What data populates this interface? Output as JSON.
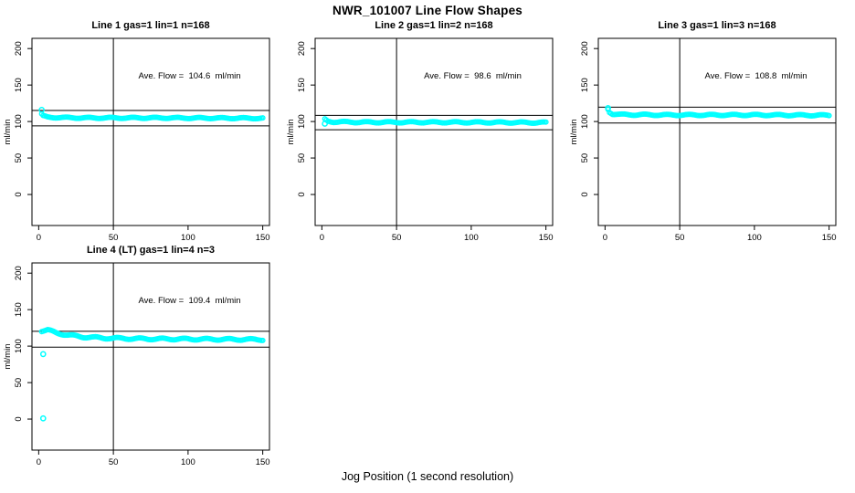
{
  "chart_data": {
    "type": "scatter",
    "title": "NWR_101007  Line Flow Shapes",
    "xlabel": "Jog Position (1 second resolution)",
    "ylabel": "ml/min",
    "x_ticks": [
      0,
      50,
      100,
      150
    ],
    "y_ticks": [
      0,
      50,
      100,
      150,
      200
    ],
    "xlim": [
      -4.5,
      154.5
    ],
    "ylim": [
      -42.5,
      214
    ],
    "grid": false,
    "legend": "none",
    "background_color": "#FFFFFF",
    "axis_color": "#000000",
    "point_color": "#00FFFF",
    "marker": "open-circle",
    "vline_x": 50,
    "panels": [
      {
        "title": "Line 1 gas=1 lin=1 n=168",
        "annotation": "Ave. Flow =  104.6  ml/min",
        "ave_flow_ml_min": 104.6,
        "hlines": [
          115.1,
          94.1
        ],
        "band": {
          "x_start": 2,
          "x_end": 150,
          "spread": 0.8,
          "keypoints": [
            [
              2,
              110
            ],
            [
              3,
              107.5
            ],
            [
              6,
              106
            ],
            [
              12,
              105.5
            ],
            [
              30,
              105
            ],
            [
              80,
              105
            ],
            [
              150,
              104.5
            ]
          ]
        },
        "extra_points": [
          [
            2,
            116
          ]
        ]
      },
      {
        "title": "Line 2 gas=1 lin=2 n=168",
        "annotation": "Ave. Flow =  98.6  ml/min",
        "ave_flow_ml_min": 98.6,
        "hlines": [
          108.5,
          88.7
        ],
        "band": {
          "x_start": 2,
          "x_end": 150,
          "spread": 0.9,
          "keypoints": [
            [
              2,
              103
            ],
            [
              4,
              100.5
            ],
            [
              8,
              99.5
            ],
            [
              30,
              99
            ],
            [
              80,
              99
            ],
            [
              150,
              98.5
            ]
          ]
        },
        "extra_points": [
          [
            2,
            97
          ]
        ]
      },
      {
        "title": "Line 3 gas=1 lin=3 n=168",
        "annotation": "Ave. Flow =  108.8  ml/min",
        "ave_flow_ml_min": 108.8,
        "hlines": [
          119.7,
          97.9
        ],
        "band": {
          "x_start": 2,
          "x_end": 150,
          "spread": 0.9,
          "keypoints": [
            [
              2,
              117
            ],
            [
              3,
              113
            ],
            [
              5,
              110.5
            ],
            [
              10,
              109.5
            ],
            [
              40,
              109
            ],
            [
              100,
              109
            ],
            [
              150,
              108.5
            ]
          ]
        },
        "extra_points": [
          [
            2,
            118.5
          ]
        ]
      },
      {
        "title": "Line 4 (LT) gas=1 lin=4 n=3",
        "annotation": "Ave. Flow =  109.4  ml/min",
        "ave_flow_ml_min": 109.4,
        "hlines": [
          120.3,
          98.5
        ],
        "band": {
          "x_start": 2,
          "x_end": 150,
          "spread": 1.2,
          "keypoints": [
            [
              2,
              121
            ],
            [
              6,
              122
            ],
            [
              12,
              118
            ],
            [
              20,
              115
            ],
            [
              30,
              112.5
            ],
            [
              45,
              111
            ],
            [
              70,
              110
            ],
            [
              110,
              109.5
            ],
            [
              150,
              109
            ]
          ]
        },
        "extra_points": [
          [
            3,
            89
          ],
          [
            3,
            1
          ]
        ]
      }
    ]
  }
}
